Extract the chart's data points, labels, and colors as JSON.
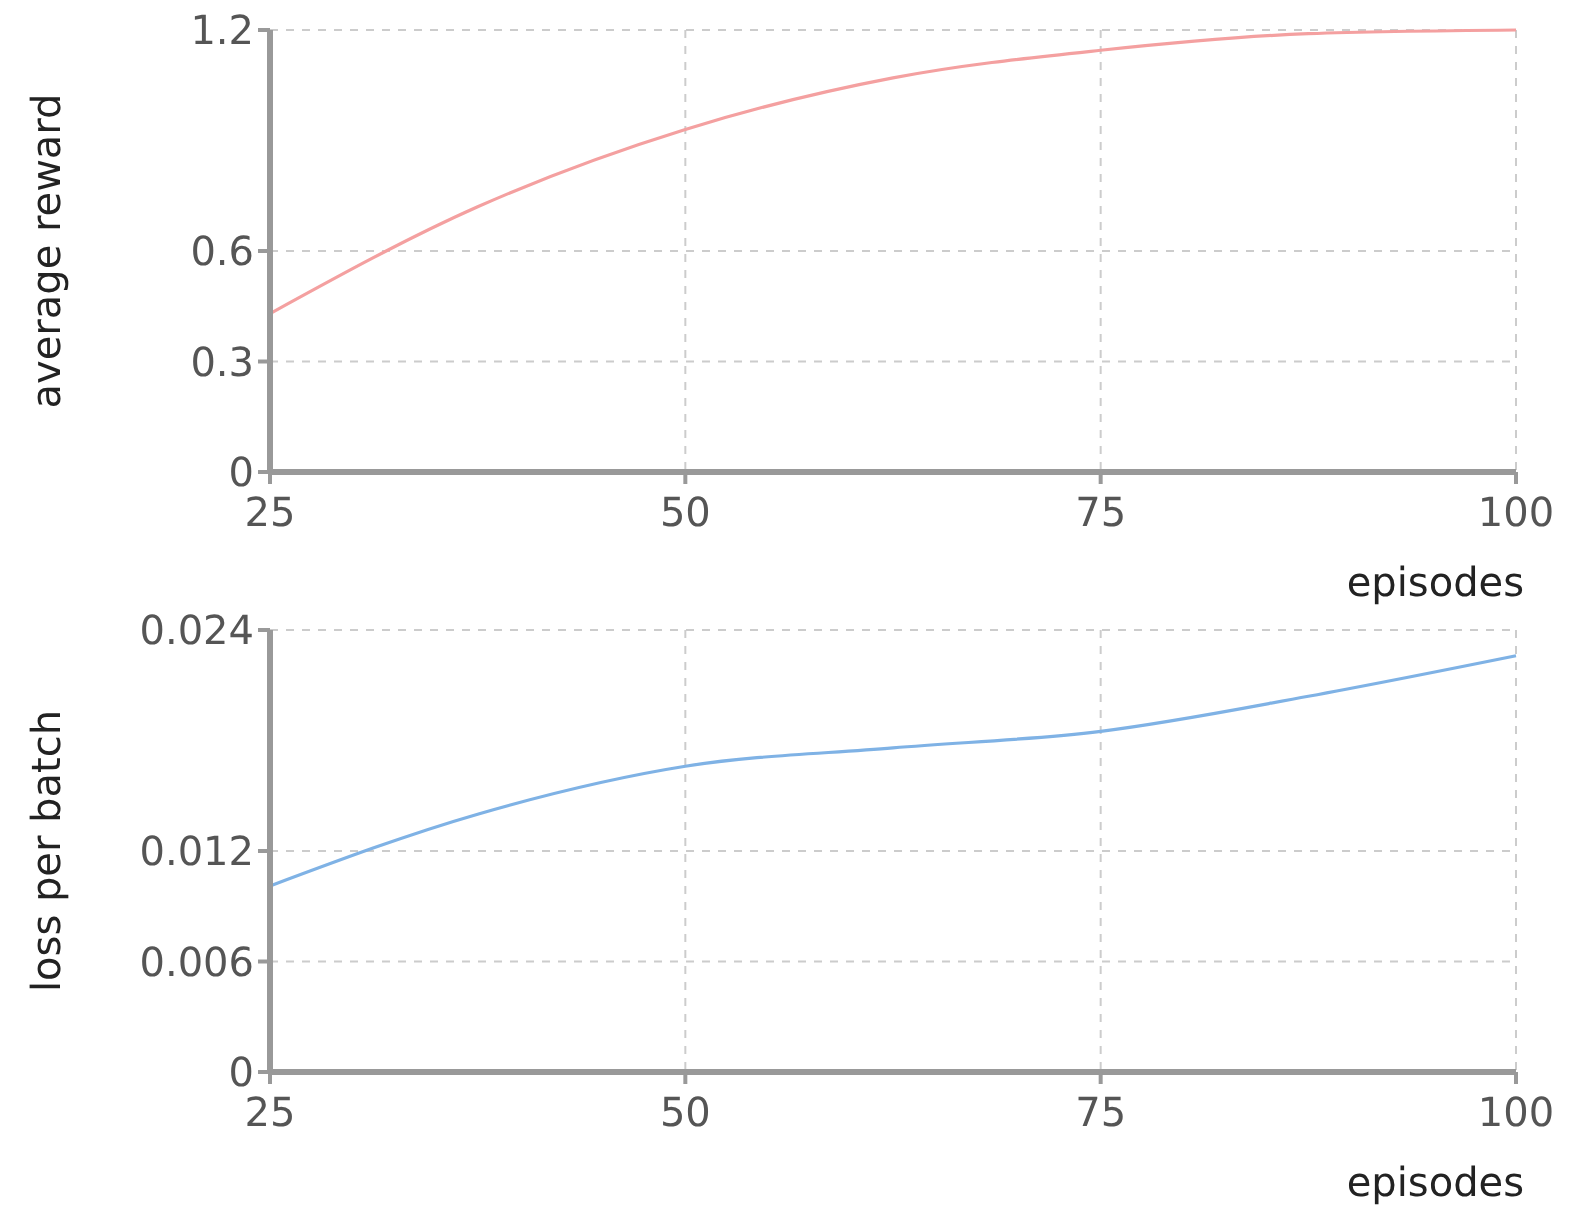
{
  "chart_data": [
    {
      "type": "line",
      "xlabel": "episodes",
      "ylabel": "average reward",
      "x": [
        25,
        37.5,
        50,
        62.5,
        75,
        87.5,
        100
      ],
      "series": [
        {
          "color": "#f4a0a0",
          "values": [
            0.43,
            0.72,
            0.93,
            1.07,
            1.145,
            1.19,
            1.2
          ]
        }
      ],
      "xlim": [
        25,
        100
      ],
      "xticks": [
        25,
        50,
        75,
        100
      ],
      "ylim": [
        0,
        1.2
      ],
      "yticks": [
        0,
        0.3,
        0.6,
        1.2
      ],
      "grid": true,
      "marker": "none",
      "line_style": "solid"
    },
    {
      "type": "line",
      "xlabel": "episodes",
      "ylabel": "loss per batch",
      "x": [
        25,
        37.5,
        50,
        62.5,
        75,
        87.5,
        100
      ],
      "series": [
        {
          "color": "#7fb2e5",
          "values": [
            0.0101,
            0.014,
            0.0166,
            0.0176,
            0.0185,
            0.0204,
            0.0226
          ]
        }
      ],
      "xlim": [
        25,
        100
      ],
      "xticks": [
        25,
        50,
        75,
        100
      ],
      "ylim": [
        0,
        0.024
      ],
      "yticks": [
        0,
        0.006,
        0.012,
        0.024
      ],
      "grid": true,
      "marker": "none",
      "line_style": "solid"
    }
  ]
}
